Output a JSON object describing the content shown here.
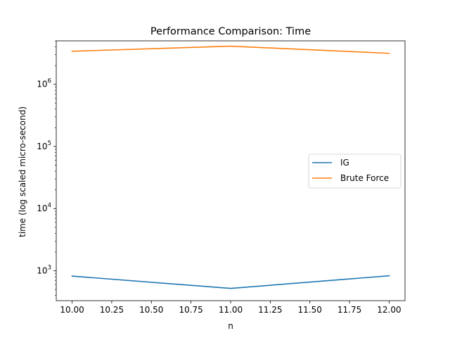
{
  "chart_data": {
    "type": "line",
    "title": "Performance Comparison: Time",
    "xlabel": "n",
    "ylabel": "time (log scaled micro-second)",
    "x": [
      10,
      11,
      12
    ],
    "xlim": [
      9.9,
      12.1
    ],
    "ylim": [
      330,
      5000000
    ],
    "yscale": "log",
    "x_ticks": [
      10.0,
      10.25,
      10.5,
      10.75,
      11.0,
      11.25,
      11.5,
      11.75,
      12.0
    ],
    "x_tick_labels": [
      "10.00",
      "10.25",
      "10.50",
      "10.75",
      "11.00",
      "11.25",
      "11.50",
      "11.75",
      "12.00"
    ],
    "y_major_ticks": [
      1000,
      10000,
      100000,
      1000000
    ],
    "y_tick_labels": [
      {
        "base": "10",
        "exp": "3"
      },
      {
        "base": "10",
        "exp": "4"
      },
      {
        "base": "10",
        "exp": "5"
      },
      {
        "base": "10",
        "exp": "6"
      }
    ],
    "series": [
      {
        "name": "IG",
        "color": "#1f77b4",
        "values": [
          820,
          520,
          830
        ]
      },
      {
        "name": "Brute Force",
        "color": "#ff7f0e",
        "values": [
          3400000,
          4100000,
          3150000
        ]
      }
    ],
    "legend_position": "center-right",
    "grid": false
  }
}
